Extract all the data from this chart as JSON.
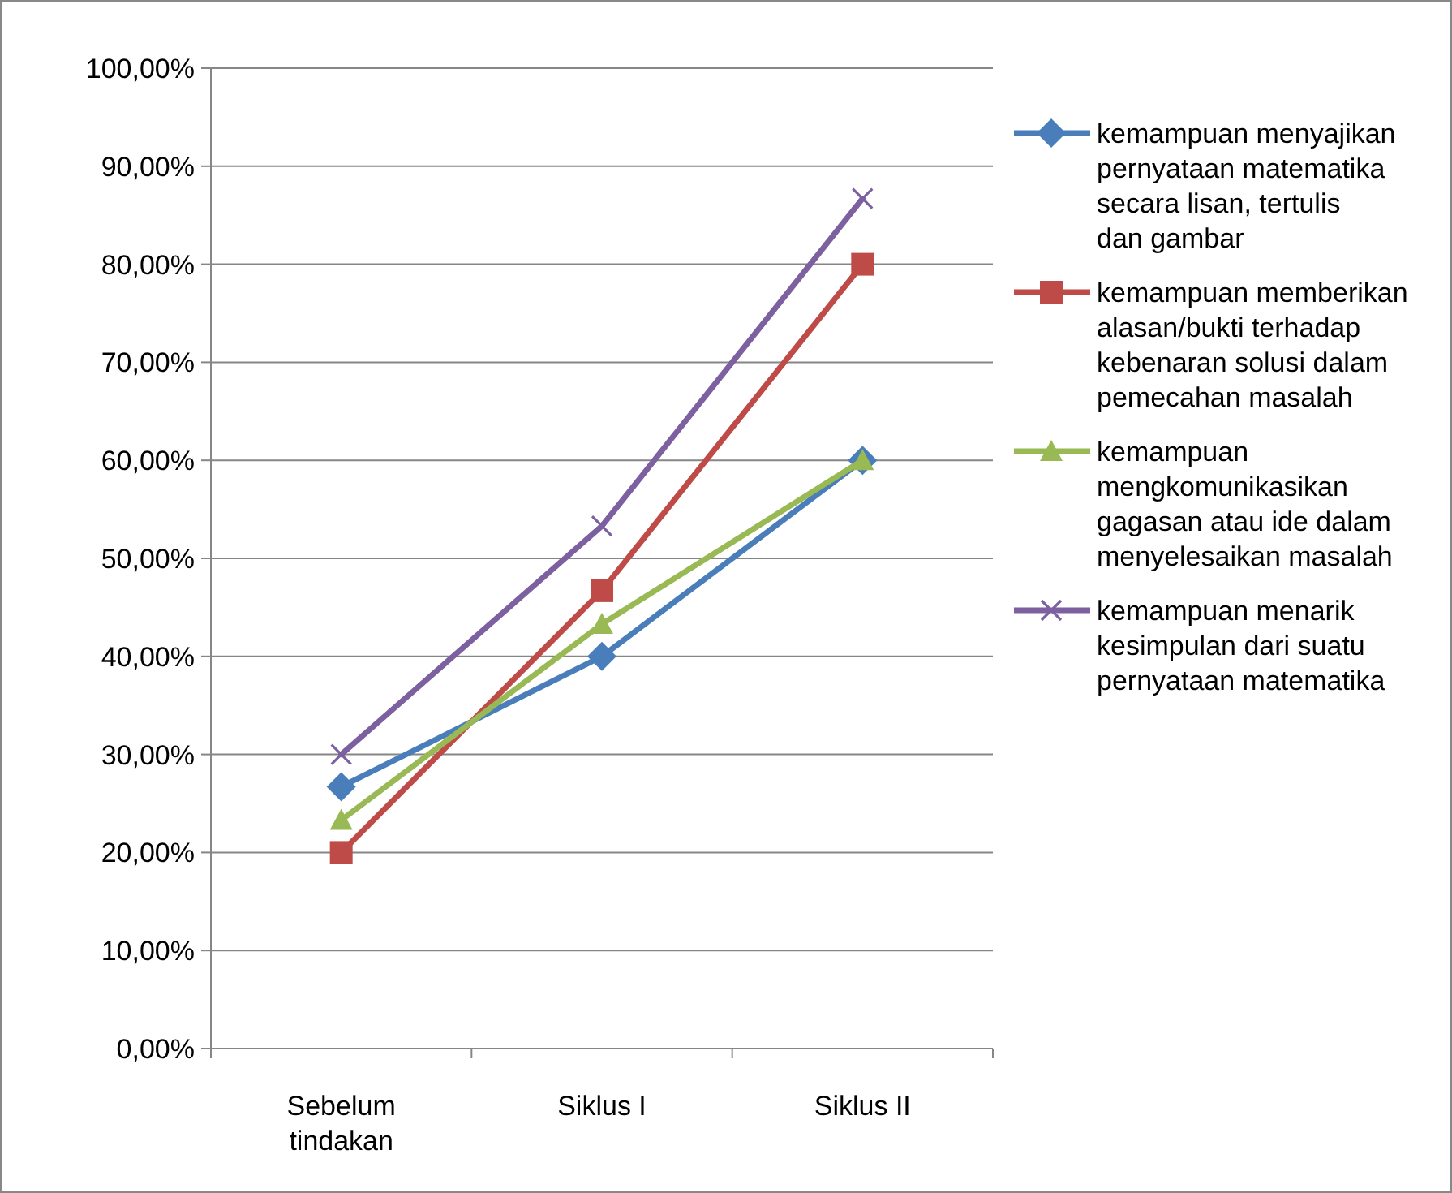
{
  "chart_data": {
    "type": "line",
    "categories": [
      "Sebelum tindakan",
      "Siklus I",
      "Siklus II"
    ],
    "series": [
      {
        "name": "kemampuan menyajikan pernyataan matematika secara lisan, tertulis dan gambar",
        "color": "#4a7ebb",
        "marker": "diamond",
        "values": [
          26.7,
          40,
          60
        ]
      },
      {
        "name": "kemampuan memberikan alasan/bukti terhadap kebenaran solusi dalam pemecahan masalah",
        "color": "#be4b48",
        "marker": "square",
        "values": [
          20,
          46.7,
          80
        ]
      },
      {
        "name": "kemampuan mengkomunikasikan gagasan atau ide dalam menyelesaikan masalah",
        "color": "#98b954",
        "marker": "triangle",
        "values": [
          23.3,
          43.3,
          60
        ]
      },
      {
        "name": "kemampuan menarik kesimpulan dari suatu pernyataan matematika",
        "color": "#7d60a0",
        "marker": "cross",
        "values": [
          30,
          53.3,
          86.7
        ]
      }
    ],
    "ylim": [
      0,
      100
    ],
    "yticks": [
      {
        "value": 0,
        "label": "0,00%"
      },
      {
        "value": 10,
        "label": "10,00%"
      },
      {
        "value": 20,
        "label": "20,00%"
      },
      {
        "value": 30,
        "label": "30,00%"
      },
      {
        "value": 40,
        "label": "40,00%"
      },
      {
        "value": 50,
        "label": "50,00%"
      },
      {
        "value": 60,
        "label": "60,00%"
      },
      {
        "value": 70,
        "label": "70,00%"
      },
      {
        "value": 80,
        "label": "80,00%"
      },
      {
        "value": 90,
        "label": "90,00%"
      },
      {
        "value": 100,
        "label": "100,00%"
      }
    ],
    "grid": "y",
    "legend": "right"
  }
}
